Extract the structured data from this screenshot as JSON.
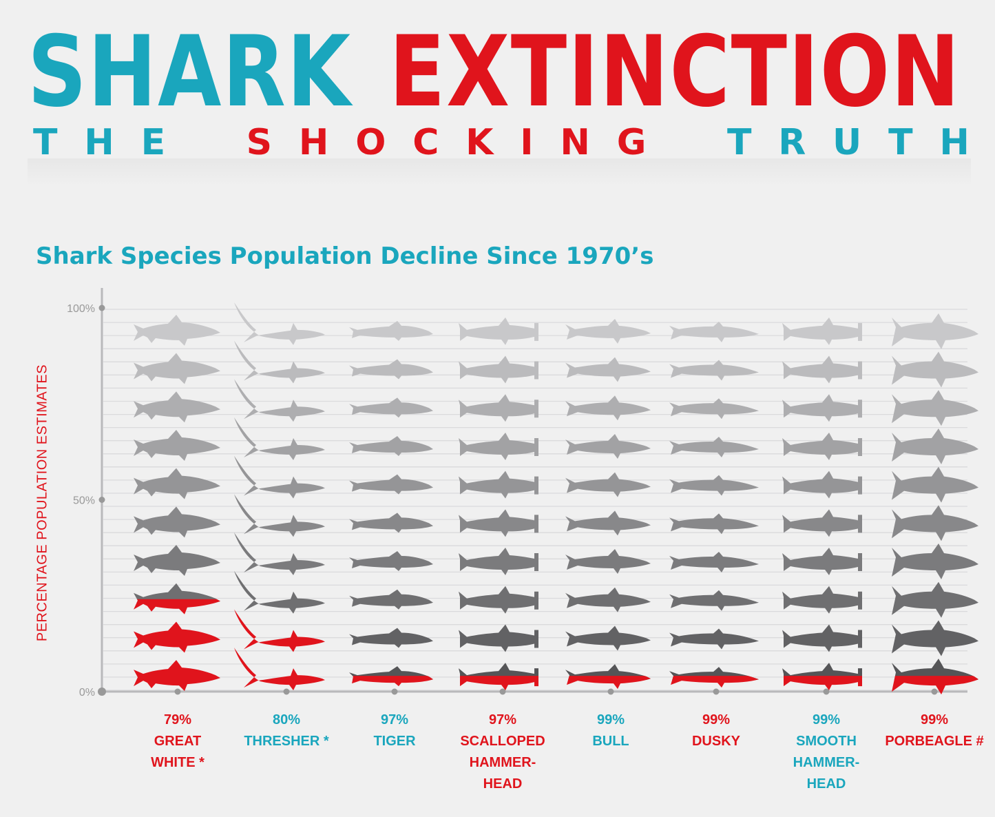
{
  "header": {
    "title_word1": "SHARK",
    "title_word2": "EXTINCTION",
    "subtitle_word1": "THE",
    "subtitle_word2": "SHOCKING",
    "subtitle_word3": "TRUTH"
  },
  "colors": {
    "teal": "#1aa6bd",
    "red": "#e0141c",
    "remaining_light": "#c8c8ca",
    "remaining_dark": "#555557",
    "lost": "#e0141c"
  },
  "chart_data": {
    "type": "pictogram",
    "title": "Shark Species Population Decline Since 1970’s",
    "ylabel": "PERCENTAGE POPULATION ESTIMATES",
    "yticks": [
      "100%",
      "50%",
      "0%"
    ],
    "ylim": [
      0,
      100
    ],
    "icons_per_column": 10,
    "percent_per_icon": 10,
    "categories": [
      {
        "percent": "79%",
        "name": [
          "GREAT",
          "WHITE *"
        ],
        "decline": 79,
        "label_color": "red",
        "icon": "great-white"
      },
      {
        "percent": "80%",
        "name": [
          "THRESHER *"
        ],
        "decline": 80,
        "label_color": "teal",
        "icon": "thresher"
      },
      {
        "percent": "97%",
        "name": [
          "TIGER"
        ],
        "decline": 97,
        "label_color": "teal",
        "icon": "tiger"
      },
      {
        "percent": "97%",
        "name": [
          "SCALLOPED",
          "HAMMER-",
          "HEAD"
        ],
        "decline": 97,
        "label_color": "red",
        "icon": "hammerhead"
      },
      {
        "percent": "99%",
        "name": [
          "BULL"
        ],
        "decline": 99,
        "label_color": "teal",
        "icon": "bull"
      },
      {
        "percent": "99%",
        "name": [
          "DUSKY"
        ],
        "decline": 99,
        "label_color": "red",
        "icon": "dusky"
      },
      {
        "percent": "99%",
        "name": [
          "SMOOTH",
          "HAMMER-",
          "HEAD"
        ],
        "decline": 99,
        "label_color": "teal",
        "icon": "hammerhead"
      },
      {
        "percent": "99%",
        "name": [
          "PORBEAGLE #"
        ],
        "decline": 99,
        "label_color": "red",
        "icon": "porbeagle"
      }
    ]
  }
}
